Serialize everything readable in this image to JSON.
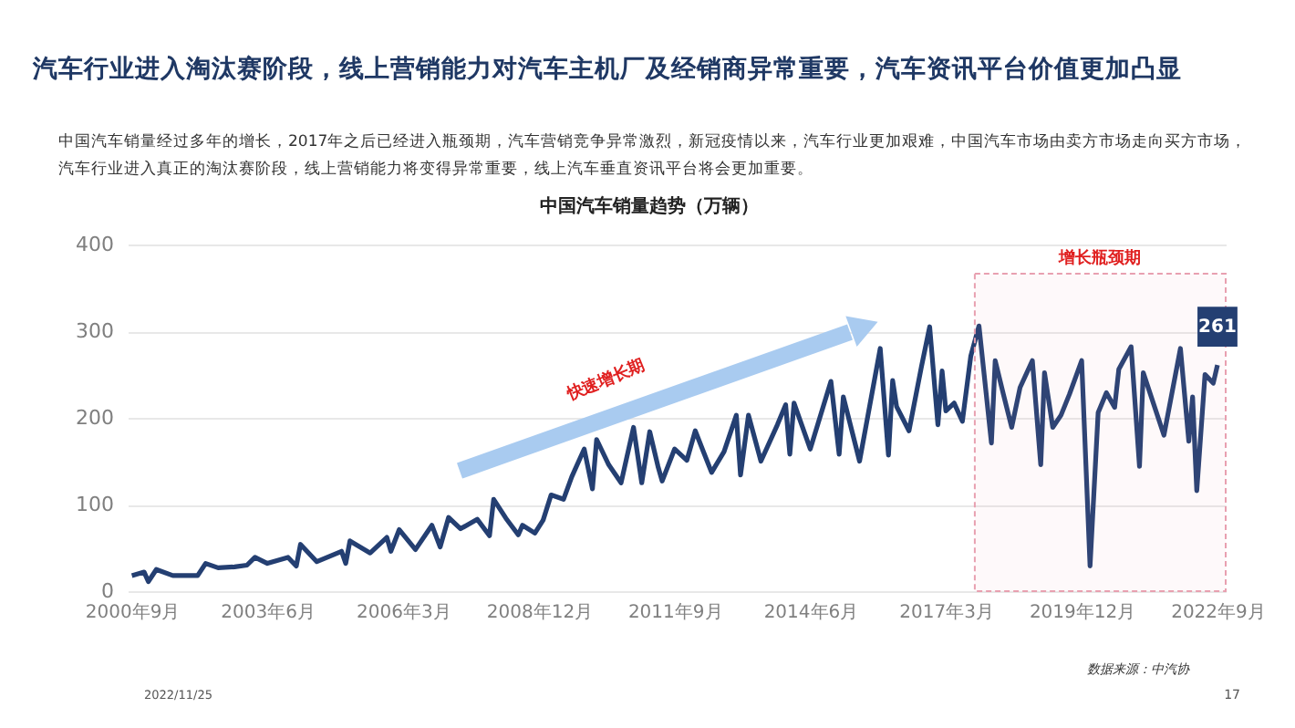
{
  "chart_data": {
    "type": "line",
    "title": "汽车行业进入淘汰赛阶段，线上营销能力对汽车主机厂及经销商异常重要，汽车资讯平台价值更加凸显",
    "subtitle": "中国汽车销量经过多年的增长，2017年之后已经进入瓶颈期，汽车营销竞争异常激烈，新冠疫情以来，汽车行业更加艰难，中国汽车市场由卖方市场走向买方市场，汽车行业进入真正的淘汰赛阶段，线上营销能力将变得异常重要，线上汽车垂直资讯平台将会更加重要。",
    "annotations": [
      "中国汽车销量趋势（万辆）",
      "快速增长期",
      "数据来源：中汽协",
      "2022/11/25",
      "17"
    ],
    "x": [
      "2000-09",
      "2000-12",
      "2001-01",
      "2001-03",
      "2001-07",
      "2002-01",
      "2002-03",
      "2002-06",
      "2002-10",
      "2003-01",
      "2003-03",
      "2003-06",
      "2003-11",
      "2004-01",
      "2004-02",
      "2004-06",
      "2004-12",
      "2005-01",
      "2005-02",
      "2005-07",
      "2005-11",
      "2005-12",
      "2006-02",
      "2006-06",
      "2006-10",
      "2006-12",
      "2007-02",
      "2007-05",
      "2007-09",
      "2007-12",
      "2008-01",
      "2008-04",
      "2008-07",
      "2008-08",
      "2008-11",
      "2009-01",
      "2009-03",
      "2009-06",
      "2009-08",
      "2009-11",
      "2010-01",
      "2010-02",
      "2010-05",
      "2010-08",
      "2010-11",
      "2011-01",
      "2011-03",
      "2011-05",
      "2011-06",
      "2011-09",
      "2011-12",
      "2012-02",
      "2012-04",
      "2012-06",
      "2012-09",
      "2012-12",
      "2013-01",
      "2013-03",
      "2013-06",
      "2013-10",
      "2013-12",
      "2014-01",
      "2014-02",
      "2014-06",
      "2014-11",
      "2015-01",
      "2015-02",
      "2015-06",
      "2015-11",
      "2016-01",
      "2016-02",
      "2016-03",
      "2016-06",
      "2016-09",
      "2016-11",
      "2017-01",
      "2017-02",
      "2017-03",
      "2017-05",
      "2017-07",
      "2017-09",
      "2017-11",
      "2018-02",
      "2018-03",
      "2018-05",
      "2018-07",
      "2018-09",
      "2018-12",
      "2019-02",
      "2019-03",
      "2019-05",
      "2019-07",
      "2019-09",
      "2019-12",
      "2020-02",
      "2020-04",
      "2020-06",
      "2020-08",
      "2020-09",
      "2020-12",
      "2021-02",
      "2021-03",
      "2021-08",
      "2021-12",
      "2022-02",
      "2022-03",
      "2022-04",
      "2022-06",
      "2022-08",
      "2022-09"
    ],
    "series": [
      {
        "color": "#243f72",
        "values": [
          18,
          22,
          11,
          25,
          18,
          18,
          32,
          27,
          28,
          30,
          39,
          32,
          39,
          29,
          54,
          34,
          46,
          32,
          58,
          44,
          62,
          46,
          71,
          48,
          76,
          51,
          85,
          72,
          83,
          64,
          106,
          84,
          65,
          76,
          67,
          82,
          111,
          106,
          132,
          164,
          118,
          175,
          146,
          125,
          189,
          125,
          184,
          144,
          127,
          164,
          151,
          185,
          161,
          137,
          161,
          203,
          134,
          203,
          150,
          192,
          215,
          158,
          217,
          164,
          242,
          158,
          224,
          150,
          280,
          157,
          243,
          213,
          185,
          259,
          305,
          192,
          254,
          208,
          217,
          196,
          271,
          306,
          171,
          266,
          227,
          189,
          235,
          266,
          146,
          252,
          189,
          203,
          227,
          266,
          29,
          206,
          229,
          212,
          256,
          282,
          144,
          252,
          180,
          280,
          173,
          224,
          116,
          250,
          240,
          261
        ],
        "value_labels": [
          null,
          null,
          null,
          null,
          null,
          null,
          null,
          null,
          null,
          null,
          null,
          null,
          null,
          null,
          null,
          null,
          null,
          null,
          null,
          null,
          null,
          null,
          null,
          null,
          null,
          null,
          null,
          null,
          null,
          null,
          null,
          null,
          null,
          null,
          null,
          null,
          null,
          null,
          null,
          null,
          null,
          null,
          null,
          null,
          null,
          null,
          null,
          null,
          null,
          null,
          null,
          null,
          null,
          null,
          null,
          null,
          null,
          null,
          null,
          null,
          null,
          null,
          null,
          null,
          null,
          null,
          null,
          null,
          null,
          null,
          null,
          null,
          null,
          null,
          null,
          null,
          null,
          null,
          null,
          null,
          null,
          null,
          null,
          null,
          null,
          null,
          null,
          null,
          null,
          null,
          null,
          null,
          null,
          null,
          null,
          null,
          null,
          null,
          null,
          null,
          null,
          null,
          null,
          null,
          null,
          null,
          null,
          null,
          null,
          "261"
        ]
      }
    ],
    "xlim": [
      "2000-08",
      "2022-11"
    ],
    "xticks": [
      {
        "value": "2000-09",
        "label": "2000年9月"
      },
      {
        "value": "2003-06",
        "label": "2003年6月"
      },
      {
        "value": "2006-03",
        "label": "2006年3月"
      },
      {
        "value": "2008-12",
        "label": "2008年12月"
      },
      {
        "value": "2011-09",
        "label": "2011年9月"
      },
      {
        "value": "2014-06",
        "label": "2014年6月"
      },
      {
        "value": "2017-03",
        "label": "2017年3月"
      },
      {
        "value": "2019-12",
        "label": "2019年12月"
      },
      {
        "value": "2022-09",
        "label": "2022年9月"
      }
    ],
    "ylim": [
      0,
      400
    ],
    "yticks": [
      0,
      100,
      200,
      300,
      400
    ],
    "grid": "y",
    "marker": "none",
    "line_style": "solid",
    "bands": [
      {
        "axis": "x",
        "from": "2017-10",
        "to": "2022-11",
        "label": "增长瓶颈期",
        "color": "#e8a0b0"
      }
    ]
  }
}
